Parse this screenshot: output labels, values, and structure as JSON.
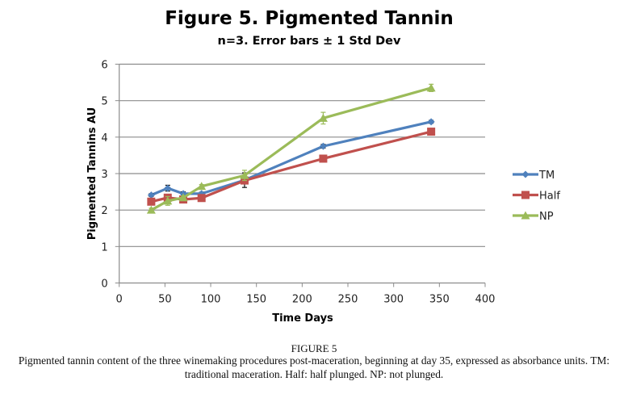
{
  "chart_data": {
    "type": "line",
    "title": "Figure 5. Pigmented Tannin",
    "subtitle": "n=3. Error bars ± 1 Std Dev",
    "xlabel": "Time Days",
    "ylabel": "Pigmented Tannins AU",
    "xlim": [
      0,
      400
    ],
    "ylim": [
      0,
      6
    ],
    "xticks": [
      0,
      50,
      100,
      150,
      200,
      250,
      300,
      350,
      400
    ],
    "yticks": [
      0,
      1,
      2,
      3,
      4,
      5,
      6
    ],
    "grid": "horizontal",
    "legend_position": "right",
    "x": [
      35,
      53,
      70,
      90,
      137,
      223,
      341
    ],
    "series": [
      {
        "name": "TM",
        "color": "#4f81bd",
        "marker": "diamond",
        "values": [
          2.41,
          2.6,
          2.45,
          2.45,
          2.82,
          3.75,
          4.42
        ],
        "errors": [
          0.04,
          0.08,
          0.05,
          0.04,
          0.2,
          0.05,
          0.04
        ]
      },
      {
        "name": "Half",
        "color": "#c0504d",
        "marker": "square",
        "values": [
          2.23,
          2.34,
          2.29,
          2.33,
          2.81,
          3.41,
          4.15
        ],
        "errors": [
          0.05,
          0.05,
          0.08,
          0.05,
          0.08,
          0.08,
          0.05
        ]
      },
      {
        "name": "NP",
        "color": "#9bbb59",
        "marker": "triangle",
        "values": [
          2.0,
          2.25,
          2.34,
          2.65,
          2.95,
          4.52,
          5.35
        ],
        "errors": [
          0.05,
          0.12,
          0.05,
          0.05,
          0.14,
          0.16,
          0.1
        ]
      }
    ]
  },
  "caption": {
    "label": "FIGURE 5",
    "text": "Pigmented tannin content of the three winemaking procedures post-maceration, beginning at day 35, expressed as absorbance units. TM: traditional maceration. Half: half plunged. NP: not plunged."
  }
}
